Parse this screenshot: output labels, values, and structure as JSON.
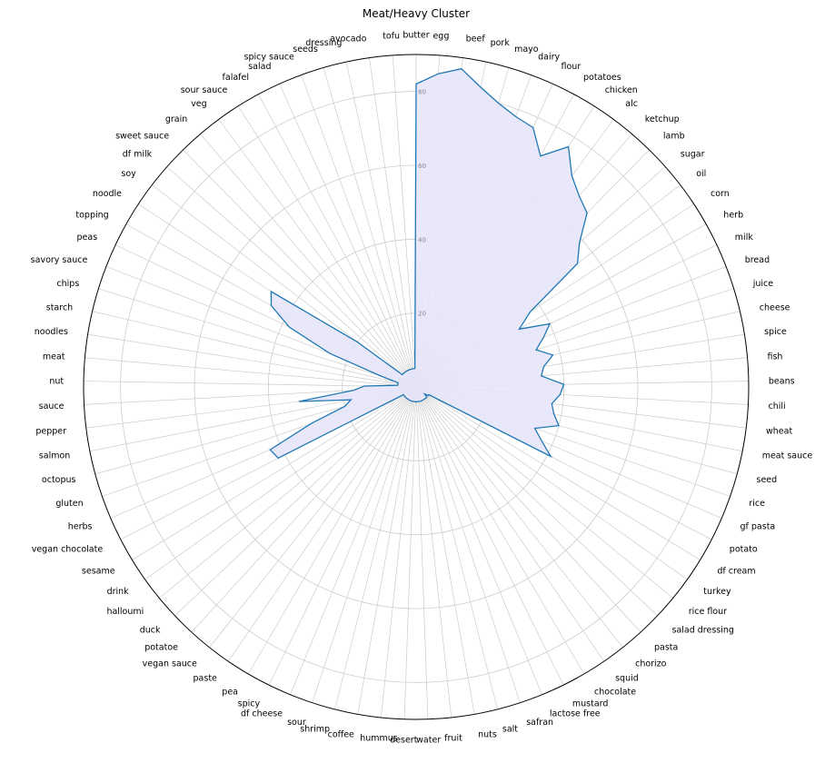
{
  "chart_data": {
    "type": "radar",
    "title": "Meat/Heavy Cluster",
    "categories": [
      "butter",
      "egg",
      "beef",
      "pork",
      "mayo",
      "dairy",
      "flour",
      "potatoes",
      "chicken",
      "alc",
      "ketchup",
      "lamb",
      "sugar",
      "oil",
      "corn",
      "herb",
      "milk",
      "bread",
      "juice",
      "cheese",
      "spice",
      "fish",
      "beans",
      "chili",
      "wheat",
      "meat sauce",
      "seed",
      "rice",
      "gf pasta",
      "potato",
      "df cream",
      "turkey",
      "rice flour",
      "salad dressing",
      "pasta",
      "chorizo",
      "squid",
      "chocolate",
      "mustard",
      "lactose free",
      "safran",
      "salt",
      "nuts",
      "fruit",
      "water",
      "desert",
      "hummus",
      "coffee",
      "shrimp",
      "sour",
      "df cheese",
      "spicy",
      "pea",
      "paste",
      "vegan sauce",
      "potatoe",
      "duck",
      "halloumi",
      "drink",
      "sesame",
      "vegan chocolate",
      "herbs",
      "gluten",
      "octopus",
      "salmon",
      "pepper",
      "sauce",
      "nut",
      "meat",
      "noodles",
      "starch",
      "chips",
      "savory sauce",
      "peas",
      "topping",
      "noodle",
      "soy",
      "df milk",
      "sweet sauce",
      "grain",
      "veg",
      "sour sauce",
      "falafel",
      "salad",
      "spicy sauce",
      "seeds",
      "dressing",
      "avocado",
      "tofu"
    ],
    "values": [
      82,
      85,
      87,
      83,
      80,
      78,
      77,
      71,
      77,
      71,
      68,
      66,
      59,
      55,
      37,
      32,
      40,
      37,
      34,
      38,
      35,
      34,
      40,
      39,
      37,
      38,
      40,
      34,
      37,
      41,
      4,
      4,
      3,
      4,
      4,
      4,
      4,
      4,
      4,
      4,
      4,
      4,
      4,
      4,
      4,
      4,
      4,
      4,
      4,
      4,
      4,
      4,
      4,
      4,
      4,
      4,
      4,
      4,
      4,
      4,
      42,
      43,
      30,
      20,
      18,
      32,
      17,
      14,
      5,
      5,
      5,
      10,
      25,
      38,
      45,
      47,
      20,
      5,
      5,
      5,
      5,
      5,
      5,
      5,
      5,
      5,
      5,
      5,
      5
    ],
    "rlim": [
      0,
      90
    ],
    "rticks": [
      20,
      40,
      60,
      80
    ],
    "grid": true,
    "fill_color": "#e6e6fa",
    "line_color": "#1f77b4"
  }
}
